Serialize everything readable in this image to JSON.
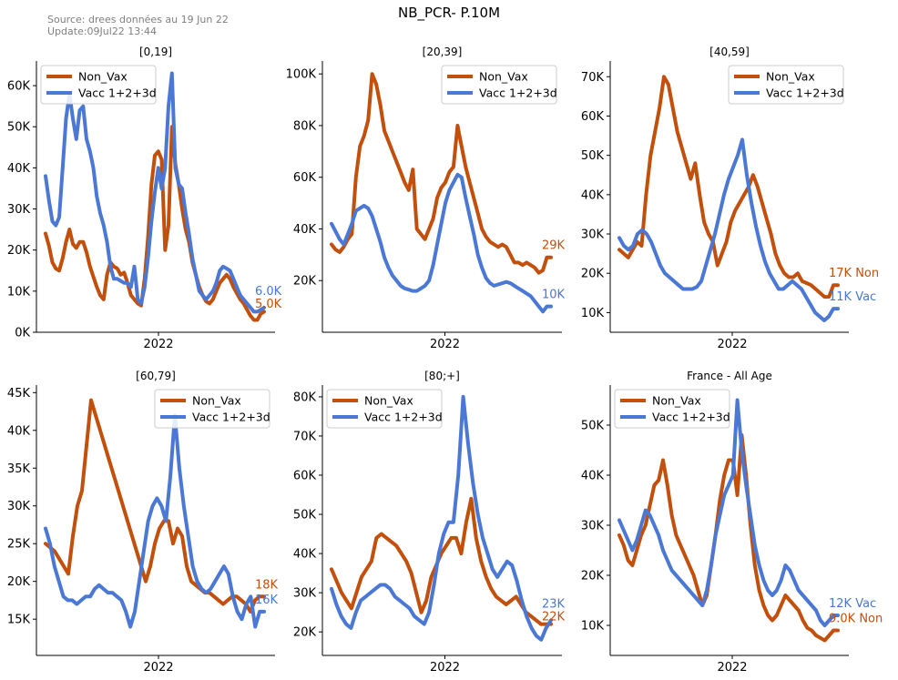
{
  "header": {
    "title": "NB_PCR- P.10M",
    "source_line1": "Source: drees données au 19 Jun 22",
    "source_line2": "Update:09Jul22 13:44"
  },
  "colors": {
    "non_vax": "#c2500c",
    "vax": "#4a78d4"
  },
  "chart_data": [
    {
      "type": "line",
      "title": "[0,19]",
      "x_tick_labels": [
        "2022"
      ],
      "y_ticks": [
        "0K",
        "10K",
        "20K",
        "30K",
        "40K",
        "50K",
        "60K"
      ],
      "ylim": [
        0,
        66000
      ],
      "legend": "top-left",
      "series": [
        {
          "name": "Non_Vax",
          "color": "#c2500c",
          "end_label": "5.0K",
          "values": [
            24000,
            21000,
            17000,
            15500,
            15000,
            18000,
            22000,
            25000,
            21500,
            20500,
            22000,
            22000,
            19500,
            16000,
            13500,
            11000,
            9000,
            8000,
            14000,
            17000,
            16000,
            15500,
            14000,
            14500,
            12000,
            9000,
            8000,
            7000,
            6500,
            13000,
            23000,
            36000,
            43000,
            44000,
            42000,
            20000,
            26000,
            50000,
            41000,
            36000,
            30000,
            25000,
            22000,
            17000,
            14000,
            11000,
            9000,
            7500,
            7000,
            8000,
            10000,
            12000,
            13000,
            14000,
            13000,
            11000,
            9500,
            8000,
            7000,
            5500,
            4000,
            3000,
            3000,
            4500,
            5000
          ]
        },
        {
          "name": "Vacc 1+2+3d",
          "color": "#4a78d4",
          "end_label": "6.0K",
          "values": [
            38000,
            32000,
            27000,
            26000,
            28000,
            40000,
            52000,
            58000,
            52000,
            47000,
            54000,
            55000,
            47000,
            44000,
            40000,
            33000,
            29000,
            26000,
            22000,
            16000,
            13000,
            13000,
            12500,
            12000,
            12000,
            11000,
            16000,
            8000,
            7000,
            11000,
            18000,
            27000,
            34000,
            40000,
            35000,
            40000,
            55000,
            63000,
            40000,
            36000,
            35000,
            29000,
            24000,
            18000,
            14000,
            10000,
            9000,
            8000,
            9000,
            10000,
            12000,
            15000,
            16000,
            15500,
            15000,
            13000,
            11000,
            9000,
            8000,
            7000,
            6000,
            5000,
            5000,
            5500,
            6000
          ]
        }
      ]
    },
    {
      "type": "line",
      "title": "[20,39]",
      "x_tick_labels": [
        "2022"
      ],
      "y_ticks": [
        "20K",
        "40K",
        "60K",
        "80K",
        "100K"
      ],
      "ylim": [
        0,
        105000
      ],
      "legend": "top-right",
      "series": [
        {
          "name": "Non_Vax",
          "color": "#c2500c",
          "end_label": "29K",
          "values": [
            34000,
            32000,
            31000,
            33000,
            36000,
            38000,
            60000,
            72000,
            76000,
            82000,
            100000,
            96000,
            88000,
            78000,
            74000,
            70000,
            66000,
            62000,
            58000,
            55000,
            63000,
            40000,
            38000,
            36000,
            40000,
            44000,
            52000,
            56000,
            58000,
            62000,
            64000,
            80000,
            72000,
            64000,
            58000,
            52000,
            46000,
            40000,
            37000,
            35000,
            34000,
            33000,
            34000,
            33000,
            30000,
            27000,
            27000,
            26000,
            27000,
            26000,
            25000,
            23000,
            24000,
            29000,
            29000
          ]
        },
        {
          "name": "Vacc 1+2+3d",
          "color": "#4a78d4",
          "end_label": "10K",
          "values": [
            42000,
            39000,
            36000,
            34000,
            38000,
            42000,
            47000,
            48000,
            49000,
            48000,
            45000,
            40000,
            35000,
            29000,
            25000,
            22000,
            20000,
            18000,
            17000,
            16500,
            16000,
            16000,
            17000,
            18000,
            20000,
            26000,
            34000,
            42000,
            50000,
            55000,
            58000,
            61000,
            60000,
            52000,
            45000,
            38000,
            30000,
            25000,
            21000,
            19000,
            18000,
            18500,
            19000,
            19500,
            19000,
            18000,
            17000,
            16000,
            15000,
            14000,
            12000,
            10000,
            8000,
            10000,
            10000
          ]
        }
      ]
    },
    {
      "type": "line",
      "title": "[40,59]",
      "x_tick_labels": [
        "2022"
      ],
      "y_ticks": [
        "10K",
        "20K",
        "30K",
        "40K",
        "50K",
        "60K",
        "70K"
      ],
      "ylim": [
        5000,
        74000
      ],
      "legend": "top-right",
      "series": [
        {
          "name": "Non_Vax",
          "color": "#c2500c",
          "end_label": "17K Non",
          "values": [
            26000,
            25000,
            24000,
            26000,
            28000,
            27000,
            40000,
            50000,
            56000,
            62000,
            70000,
            68000,
            62000,
            56000,
            52000,
            48000,
            44000,
            48000,
            40000,
            33000,
            30000,
            28000,
            22000,
            25000,
            28000,
            33000,
            36000,
            38000,
            40000,
            42000,
            45000,
            42000,
            38000,
            34000,
            30000,
            25000,
            22000,
            20000,
            19000,
            19000,
            20000,
            18000,
            17500,
            17000,
            16000,
            15000,
            14000,
            14000,
            17000,
            17000
          ]
        },
        {
          "name": "Vacc 1+2+3d",
          "color": "#4a78d4",
          "end_label": "11K Vac",
          "values": [
            29000,
            27000,
            26000,
            27000,
            30000,
            31000,
            30000,
            28000,
            25000,
            22000,
            20000,
            19000,
            18000,
            17000,
            16000,
            16000,
            16000,
            16500,
            18000,
            22000,
            26000,
            30000,
            35000,
            40000,
            44000,
            47000,
            50000,
            54000,
            45000,
            38000,
            32000,
            27000,
            23000,
            20000,
            18000,
            16000,
            16000,
            17000,
            18000,
            17000,
            16000,
            14000,
            12000,
            10000,
            9000,
            8000,
            9000,
            11000,
            11000
          ]
        }
      ]
    },
    {
      "type": "line",
      "title": "[60,79]",
      "x_tick_labels": [
        "2022"
      ],
      "y_ticks": [
        "15K",
        "20K",
        "25K",
        "30K",
        "35K",
        "40K",
        "45K"
      ],
      "ylim": [
        10200,
        46000
      ],
      "legend": "top-right",
      "series": [
        {
          "name": "Non_Vax",
          "color": "#c2500c",
          "end_label": "18K",
          "values": [
            25000,
            24500,
            24000,
            23000,
            22000,
            21000,
            26000,
            30000,
            32000,
            38000,
            44000,
            42000,
            40000,
            38000,
            36000,
            34000,
            32000,
            30000,
            28000,
            26000,
            24000,
            22000,
            20000,
            22000,
            25000,
            27000,
            28000,
            28000,
            25000,
            27000,
            26000,
            22000,
            20000,
            19500,
            19000,
            18500,
            18500,
            18000,
            17500,
            17000,
            17500,
            18000,
            18000,
            17500,
            17000,
            16000,
            17500,
            18000,
            18000
          ]
        },
        {
          "name": "Vacc 1+2+3d",
          "color": "#4a78d4",
          "end_label": "16K",
          "values": [
            27000,
            25000,
            22000,
            20000,
            18000,
            17500,
            17500,
            17000,
            17500,
            18000,
            18000,
            19000,
            19500,
            19000,
            18500,
            18500,
            18000,
            17500,
            16000,
            14000,
            16000,
            20000,
            24000,
            28000,
            30000,
            31000,
            30000,
            28000,
            34000,
            42000,
            35000,
            30000,
            26000,
            22000,
            20000,
            19000,
            18500,
            19000,
            20000,
            21000,
            22000,
            21000,
            18000,
            16000,
            15000,
            17000,
            18000,
            14000,
            16000,
            16000
          ]
        }
      ]
    },
    {
      "type": "line",
      "title": "[80;+]",
      "x_tick_labels": [
        "2022"
      ],
      "y_ticks": [
        "20K",
        "30K",
        "40K",
        "50K",
        "60K",
        "70K",
        "80K"
      ],
      "ylim": [
        14000,
        83000
      ],
      "legend": "top-left",
      "series": [
        {
          "name": "Non_Vax",
          "color": "#c2500c",
          "end_label": "22K",
          "values": [
            36000,
            33000,
            30000,
            28000,
            26000,
            30000,
            34000,
            36000,
            38000,
            44000,
            45000,
            44000,
            43000,
            42000,
            40000,
            38000,
            35000,
            30000,
            25000,
            28000,
            34000,
            37000,
            40000,
            42000,
            44000,
            44000,
            40000,
            48000,
            54000,
            44000,
            38000,
            34000,
            31000,
            29000,
            28000,
            27000,
            28000,
            29000,
            27000,
            25000,
            24000,
            23000,
            22000,
            22000,
            22000
          ]
        },
        {
          "name": "Vacc 1+2+3d",
          "color": "#4a78d4",
          "end_label": "23K",
          "values": [
            31000,
            27000,
            24000,
            22000,
            21000,
            25000,
            28000,
            29000,
            30000,
            31000,
            32000,
            32000,
            31000,
            29000,
            28000,
            27000,
            26000,
            24000,
            23000,
            22000,
            25000,
            32000,
            40000,
            45000,
            48000,
            48000,
            60000,
            80000,
            68000,
            58000,
            50000,
            44000,
            40000,
            36000,
            34000,
            36000,
            38000,
            37000,
            33000,
            28000,
            24000,
            21000,
            19000,
            18000,
            21000,
            23000
          ]
        }
      ]
    },
    {
      "type": "line",
      "title": "France - All Age",
      "x_tick_labels": [
        "2022"
      ],
      "y_ticks": [
        "10K",
        "20K",
        "30K",
        "40K",
        "50K"
      ],
      "ylim": [
        4000,
        58000
      ],
      "legend": "top-left",
      "series": [
        {
          "name": "Non_Vax",
          "color": "#c2500c",
          "end_label": "9.0K Non",
          "values": [
            28000,
            26000,
            23000,
            22000,
            25000,
            28000,
            30000,
            34000,
            38000,
            39000,
            43000,
            38000,
            32000,
            28000,
            26000,
            24000,
            22000,
            20000,
            17000,
            14000,
            16000,
            22000,
            28000,
            35000,
            40000,
            43000,
            43000,
            36000,
            48000,
            40000,
            30000,
            22000,
            17000,
            14000,
            12000,
            11000,
            12000,
            14000,
            16000,
            15000,
            14000,
            13000,
            11000,
            9500,
            9000,
            8000,
            7500,
            7000,
            8000,
            9000,
            9000
          ]
        },
        {
          "name": "Vacc 1+2+3d",
          "color": "#4a78d4",
          "end_label": "12K Vac",
          "values": [
            31000,
            29000,
            27000,
            25000,
            27000,
            30000,
            33000,
            32000,
            30000,
            28000,
            25000,
            23000,
            21000,
            20000,
            19000,
            18000,
            17000,
            16000,
            15000,
            14000,
            17000,
            22000,
            28000,
            32000,
            36000,
            38000,
            40000,
            55000,
            45000,
            38000,
            32000,
            26000,
            22000,
            19000,
            17000,
            16000,
            17000,
            19000,
            22000,
            21000,
            19000,
            17000,
            16000,
            15000,
            14000,
            13000,
            11000,
            10000,
            11000,
            12000,
            12000
          ]
        }
      ]
    }
  ]
}
